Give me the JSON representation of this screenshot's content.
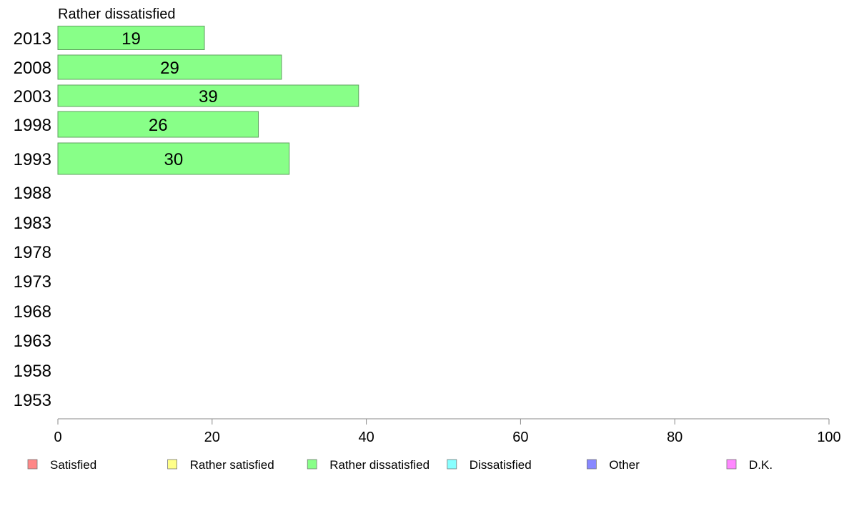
{
  "chart_data": {
    "type": "bar",
    "orientation": "horizontal",
    "title": "Rather dissatisfied",
    "categories": [
      "2013",
      "2008",
      "2003",
      "1998",
      "1993",
      "1988",
      "1983",
      "1978",
      "1973",
      "1968",
      "1963",
      "1958",
      "1953"
    ],
    "series": [
      {
        "name": "Rather dissatisfied",
        "color": "#88ff88",
        "values": [
          19,
          29,
          39,
          26,
          30,
          null,
          null,
          null,
          null,
          null,
          null,
          null,
          null
        ]
      }
    ],
    "xlim": [
      0,
      100
    ],
    "xticks": [
      0,
      20,
      40,
      60,
      80,
      100
    ],
    "grid": false,
    "legend_placement": "bottom",
    "legend": [
      {
        "label": "Satisfied",
        "color": "#ff8888"
      },
      {
        "label": "Rather satisfied",
        "color": "#ffff88"
      },
      {
        "label": "Rather dissatisfied",
        "color": "#88ff88"
      },
      {
        "label": "Dissatisfied",
        "color": "#88ffff"
      },
      {
        "label": "Other",
        "color": "#8888ff"
      },
      {
        "label": "D.K.",
        "color": "#ff88ff"
      }
    ]
  }
}
